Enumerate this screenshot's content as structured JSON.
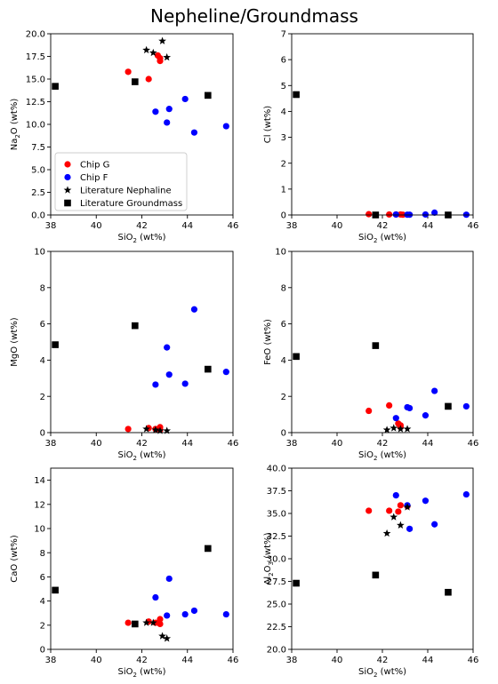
{
  "figure": {
    "title": "Nepheline/Groundmass"
  },
  "legend": {
    "location": "lower-left of first panel",
    "entries": [
      {
        "label": "Chip G",
        "marker": "circle",
        "color": "#ff0000"
      },
      {
        "label": "Chip F",
        "marker": "circle",
        "color": "#0000ff"
      },
      {
        "label": "Literature Nephaline",
        "marker": "star",
        "color": "#000000"
      },
      {
        "label": "Literature Groundmass",
        "marker": "square",
        "color": "#000000"
      }
    ]
  },
  "chart_data": [
    {
      "type": "scatter",
      "xlabel_main": "SiO",
      "xlabel_sub": "2",
      "xlabel_tail": " (wt%)",
      "ylabel_main": "Na",
      "ylabel_sub": "2",
      "ylabel_tail": "O (wt%)",
      "xlim": [
        38,
        46
      ],
      "ylim": [
        0,
        20
      ],
      "xticks": [
        38,
        40,
        42,
        44,
        46
      ],
      "yticks": [
        0,
        2.5,
        5,
        7.5,
        10,
        12.5,
        15,
        17.5,
        20
      ],
      "ytick_labels": [
        "0.0",
        "2.5",
        "5.0",
        "7.5",
        "10.0",
        "12.5",
        "15.0",
        "17.5",
        "20.0"
      ],
      "series": [
        {
          "name": "Chip G",
          "points": [
            [
              41.4,
              15.8
            ],
            [
              42.3,
              15.0
            ],
            [
              42.7,
              17.6
            ],
            [
              42.8,
              17.0
            ],
            [
              42.8,
              17.3
            ]
          ]
        },
        {
          "name": "Chip F",
          "points": [
            [
              42.6,
              11.4
            ],
            [
              43.1,
              10.2
            ],
            [
              43.2,
              11.7
            ],
            [
              43.9,
              12.8
            ],
            [
              44.3,
              9.1
            ],
            [
              45.7,
              9.8
            ]
          ]
        },
        {
          "name": "Literature Nephaline",
          "points": [
            [
              42.2,
              18.2
            ],
            [
              42.5,
              17.9
            ],
            [
              42.9,
              19.2
            ],
            [
              43.1,
              17.4
            ]
          ]
        },
        {
          "name": "Literature Groundmass",
          "points": [
            [
              38.2,
              14.2
            ],
            [
              41.7,
              14.7
            ],
            [
              44.9,
              13.2
            ]
          ]
        }
      ]
    },
    {
      "type": "scatter",
      "xlabel_main": "SiO",
      "xlabel_sub": "2",
      "xlabel_tail": " (wt%)",
      "ylabel_main": "Cl",
      "ylabel_sub": "",
      "ylabel_tail": " (wt%)",
      "xlim": [
        38,
        46
      ],
      "ylim": [
        0,
        7
      ],
      "xticks": [
        38,
        40,
        42,
        44,
        46
      ],
      "yticks": [
        0,
        1,
        2,
        3,
        4,
        5,
        6,
        7
      ],
      "ytick_labels": [
        "0",
        "1",
        "2",
        "3",
        "4",
        "5",
        "6",
        "7"
      ],
      "series": [
        {
          "name": "Chip G",
          "points": [
            [
              41.4,
              0.03
            ],
            [
              42.3,
              0.02
            ],
            [
              42.6,
              0.02
            ],
            [
              42.8,
              0.02
            ],
            [
              42.9,
              0.01
            ]
          ]
        },
        {
          "name": "Chip F",
          "points": [
            [
              42.6,
              0.02
            ],
            [
              43.1,
              0.01
            ],
            [
              43.2,
              0.01
            ],
            [
              43.9,
              0.02
            ],
            [
              44.3,
              0.09
            ],
            [
              45.7,
              0.01
            ]
          ]
        },
        {
          "name": "Literature Nephaline",
          "points": []
        },
        {
          "name": "Literature Groundmass",
          "points": [
            [
              38.2,
              4.65
            ],
            [
              41.7,
              0.0
            ],
            [
              44.9,
              0.0
            ]
          ]
        }
      ]
    },
    {
      "type": "scatter",
      "xlabel_main": "SiO",
      "xlabel_sub": "2",
      "xlabel_tail": " (wt%)",
      "ylabel_main": "MgO",
      "ylabel_sub": "",
      "ylabel_tail": " (wt%)",
      "xlim": [
        38,
        46
      ],
      "ylim": [
        0,
        10
      ],
      "xticks": [
        38,
        40,
        42,
        44,
        46
      ],
      "yticks": [
        0,
        2,
        4,
        6,
        8,
        10
      ],
      "ytick_labels": [
        "0",
        "2",
        "4",
        "6",
        "8",
        "10"
      ],
      "series": [
        {
          "name": "Chip G",
          "points": [
            [
              41.4,
              0.2
            ],
            [
              42.3,
              0.25
            ],
            [
              42.6,
              0.2
            ],
            [
              42.8,
              0.3
            ],
            [
              42.8,
              0.15
            ]
          ]
        },
        {
          "name": "Chip F",
          "points": [
            [
              42.6,
              2.65
            ],
            [
              43.1,
              4.7
            ],
            [
              43.2,
              3.2
            ],
            [
              43.9,
              2.7
            ],
            [
              44.3,
              6.8
            ],
            [
              45.7,
              3.35
            ]
          ]
        },
        {
          "name": "Literature Nephaline",
          "points": [
            [
              42.2,
              0.2
            ],
            [
              42.6,
              0.15
            ],
            [
              42.8,
              0.1
            ],
            [
              43.1,
              0.1
            ]
          ]
        },
        {
          "name": "Literature Groundmass",
          "points": [
            [
              38.2,
              4.85
            ],
            [
              41.7,
              5.9
            ],
            [
              44.9,
              3.5
            ]
          ]
        }
      ]
    },
    {
      "type": "scatter",
      "xlabel_main": "SiO",
      "xlabel_sub": "2",
      "xlabel_tail": " (wt%)",
      "ylabel_main": "FeO",
      "ylabel_sub": "",
      "ylabel_tail": " (wt%)",
      "xlim": [
        38,
        46
      ],
      "ylim": [
        0,
        10
      ],
      "xticks": [
        38,
        40,
        42,
        44,
        46
      ],
      "yticks": [
        0,
        2,
        4,
        6,
        8,
        10
      ],
      "ytick_labels": [
        "0",
        "2",
        "4",
        "6",
        "8",
        "10"
      ],
      "series": [
        {
          "name": "Chip G",
          "points": [
            [
              41.4,
              1.2
            ],
            [
              42.3,
              1.5
            ],
            [
              42.7,
              0.5
            ],
            [
              42.8,
              0.3
            ],
            [
              42.8,
              0.4
            ]
          ]
        },
        {
          "name": "Chip F",
          "points": [
            [
              42.6,
              0.8
            ],
            [
              43.1,
              1.4
            ],
            [
              43.2,
              1.35
            ],
            [
              43.9,
              0.95
            ],
            [
              44.3,
              2.3
            ],
            [
              45.7,
              1.45
            ]
          ]
        },
        {
          "name": "Literature Nephaline",
          "points": [
            [
              42.2,
              0.15
            ],
            [
              42.5,
              0.25
            ],
            [
              42.8,
              0.2
            ],
            [
              43.1,
              0.2
            ]
          ]
        },
        {
          "name": "Literature Groundmass",
          "points": [
            [
              38.2,
              4.2
            ],
            [
              41.7,
              4.8
            ],
            [
              44.9,
              1.45
            ]
          ]
        }
      ]
    },
    {
      "type": "scatter",
      "xlabel_main": "SiO",
      "xlabel_sub": "2",
      "xlabel_tail": " (wt%)",
      "ylabel_main": "CaO",
      "ylabel_sub": "",
      "ylabel_tail": " (wt%)",
      "xlim": [
        38,
        46
      ],
      "ylim": [
        0,
        15
      ],
      "xticks": [
        38,
        40,
        42,
        44,
        46
      ],
      "yticks": [
        0,
        2,
        4,
        6,
        8,
        10,
        12,
        14
      ],
      "ytick_labels": [
        "0",
        "2",
        "4",
        "6",
        "8",
        "10",
        "12",
        "14"
      ],
      "series": [
        {
          "name": "Chip G",
          "points": [
            [
              41.4,
              2.2
            ],
            [
              42.3,
              2.3
            ],
            [
              42.6,
              2.2
            ],
            [
              42.8,
              2.5
            ],
            [
              42.8,
              2.1
            ]
          ]
        },
        {
          "name": "Chip F",
          "points": [
            [
              42.6,
              4.3
            ],
            [
              43.1,
              2.8
            ],
            [
              43.2,
              5.85
            ],
            [
              43.9,
              2.9
            ],
            [
              44.3,
              3.2
            ],
            [
              45.7,
              2.9
            ]
          ]
        },
        {
          "name": "Literature Nephaline",
          "points": [
            [
              42.2,
              2.2
            ],
            [
              42.5,
              2.2
            ],
            [
              42.9,
              1.1
            ],
            [
              43.1,
              0.9
            ]
          ]
        },
        {
          "name": "Literature Groundmass",
          "points": [
            [
              38.2,
              4.9
            ],
            [
              41.7,
              2.1
            ],
            [
              44.9,
              8.35
            ]
          ]
        }
      ]
    },
    {
      "type": "scatter",
      "xlabel_main": "SiO",
      "xlabel_sub": "2",
      "xlabel_tail": " (wt%)",
      "ylabel_main": "Al",
      "ylabel_sub": "2",
      "ylabel_tail": "O3 (wt%)",
      "xlim": [
        38,
        46
      ],
      "ylim": [
        20,
        40
      ],
      "xticks": [
        38,
        40,
        42,
        44,
        46
      ],
      "yticks": [
        20,
        22.5,
        25,
        27.5,
        30,
        32.5,
        35,
        37.5,
        40
      ],
      "ytick_labels": [
        "20.0",
        "22.5",
        "25.0",
        "27.5",
        "30.0",
        "32.5",
        "35.0",
        "37.5",
        "40.0"
      ],
      "series": [
        {
          "name": "Chip G",
          "points": [
            [
              41.4,
              35.3
            ],
            [
              42.3,
              35.3
            ],
            [
              42.7,
              35.2
            ],
            [
              42.8,
              35.9
            ],
            [
              43.1,
              35.8
            ]
          ]
        },
        {
          "name": "Chip F",
          "points": [
            [
              42.6,
              37.0
            ],
            [
              43.2,
              33.3
            ],
            [
              43.1,
              35.9
            ],
            [
              43.9,
              36.4
            ],
            [
              44.3,
              33.8
            ],
            [
              45.7,
              37.1
            ]
          ]
        },
        {
          "name": "Literature Nephaline",
          "points": [
            [
              42.2,
              32.8
            ],
            [
              42.5,
              34.6
            ],
            [
              42.8,
              33.7
            ],
            [
              43.1,
              35.7
            ]
          ]
        },
        {
          "name": "Literature Groundmass",
          "points": [
            [
              38.2,
              27.3
            ],
            [
              41.7,
              28.2
            ],
            [
              44.9,
              26.3
            ]
          ]
        }
      ]
    }
  ]
}
